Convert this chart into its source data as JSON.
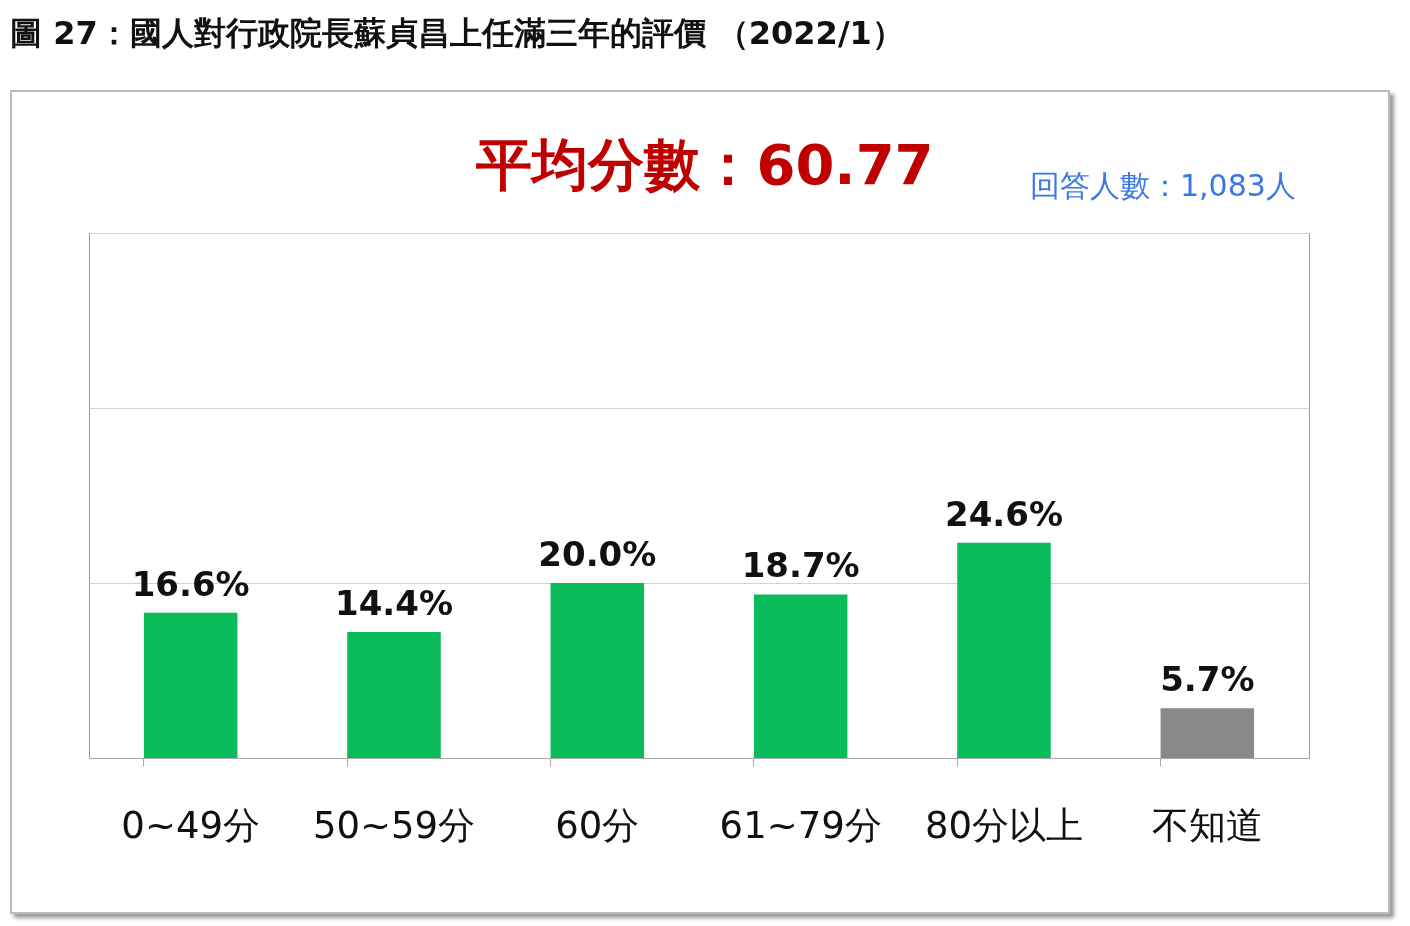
{
  "chart_data": {
    "type": "bar",
    "title": "圖 27：國人對行政院長蘇貞昌上任滿三年的評價 （2022/1）",
    "annotations": [
      "平均分數：60.77",
      "回答人數：1,083人"
    ],
    "categories": [
      "0~49分",
      "50~59分",
      "60分",
      "61~79分",
      "80分以上",
      "不知道"
    ],
    "values": [
      16.6,
      14.4,
      20.0,
      18.7,
      24.6,
      5.7
    ],
    "value_labels": [
      "16.6%",
      "14.4%",
      "20.0%",
      "18.7%",
      "24.6%",
      "5.7%"
    ],
    "colors": [
      "#0abb5a",
      "#0abb5a",
      "#0abb5a",
      "#0abb5a",
      "#0abb5a",
      "#898989"
    ],
    "ylim": [
      0,
      60
    ],
    "yticks": [
      {
        "value": 0,
        "label": null
      },
      {
        "value": 20,
        "label": null
      },
      {
        "value": 40,
        "label": null
      },
      {
        "value": 60,
        "label": null
      }
    ],
    "grid": "y"
  }
}
